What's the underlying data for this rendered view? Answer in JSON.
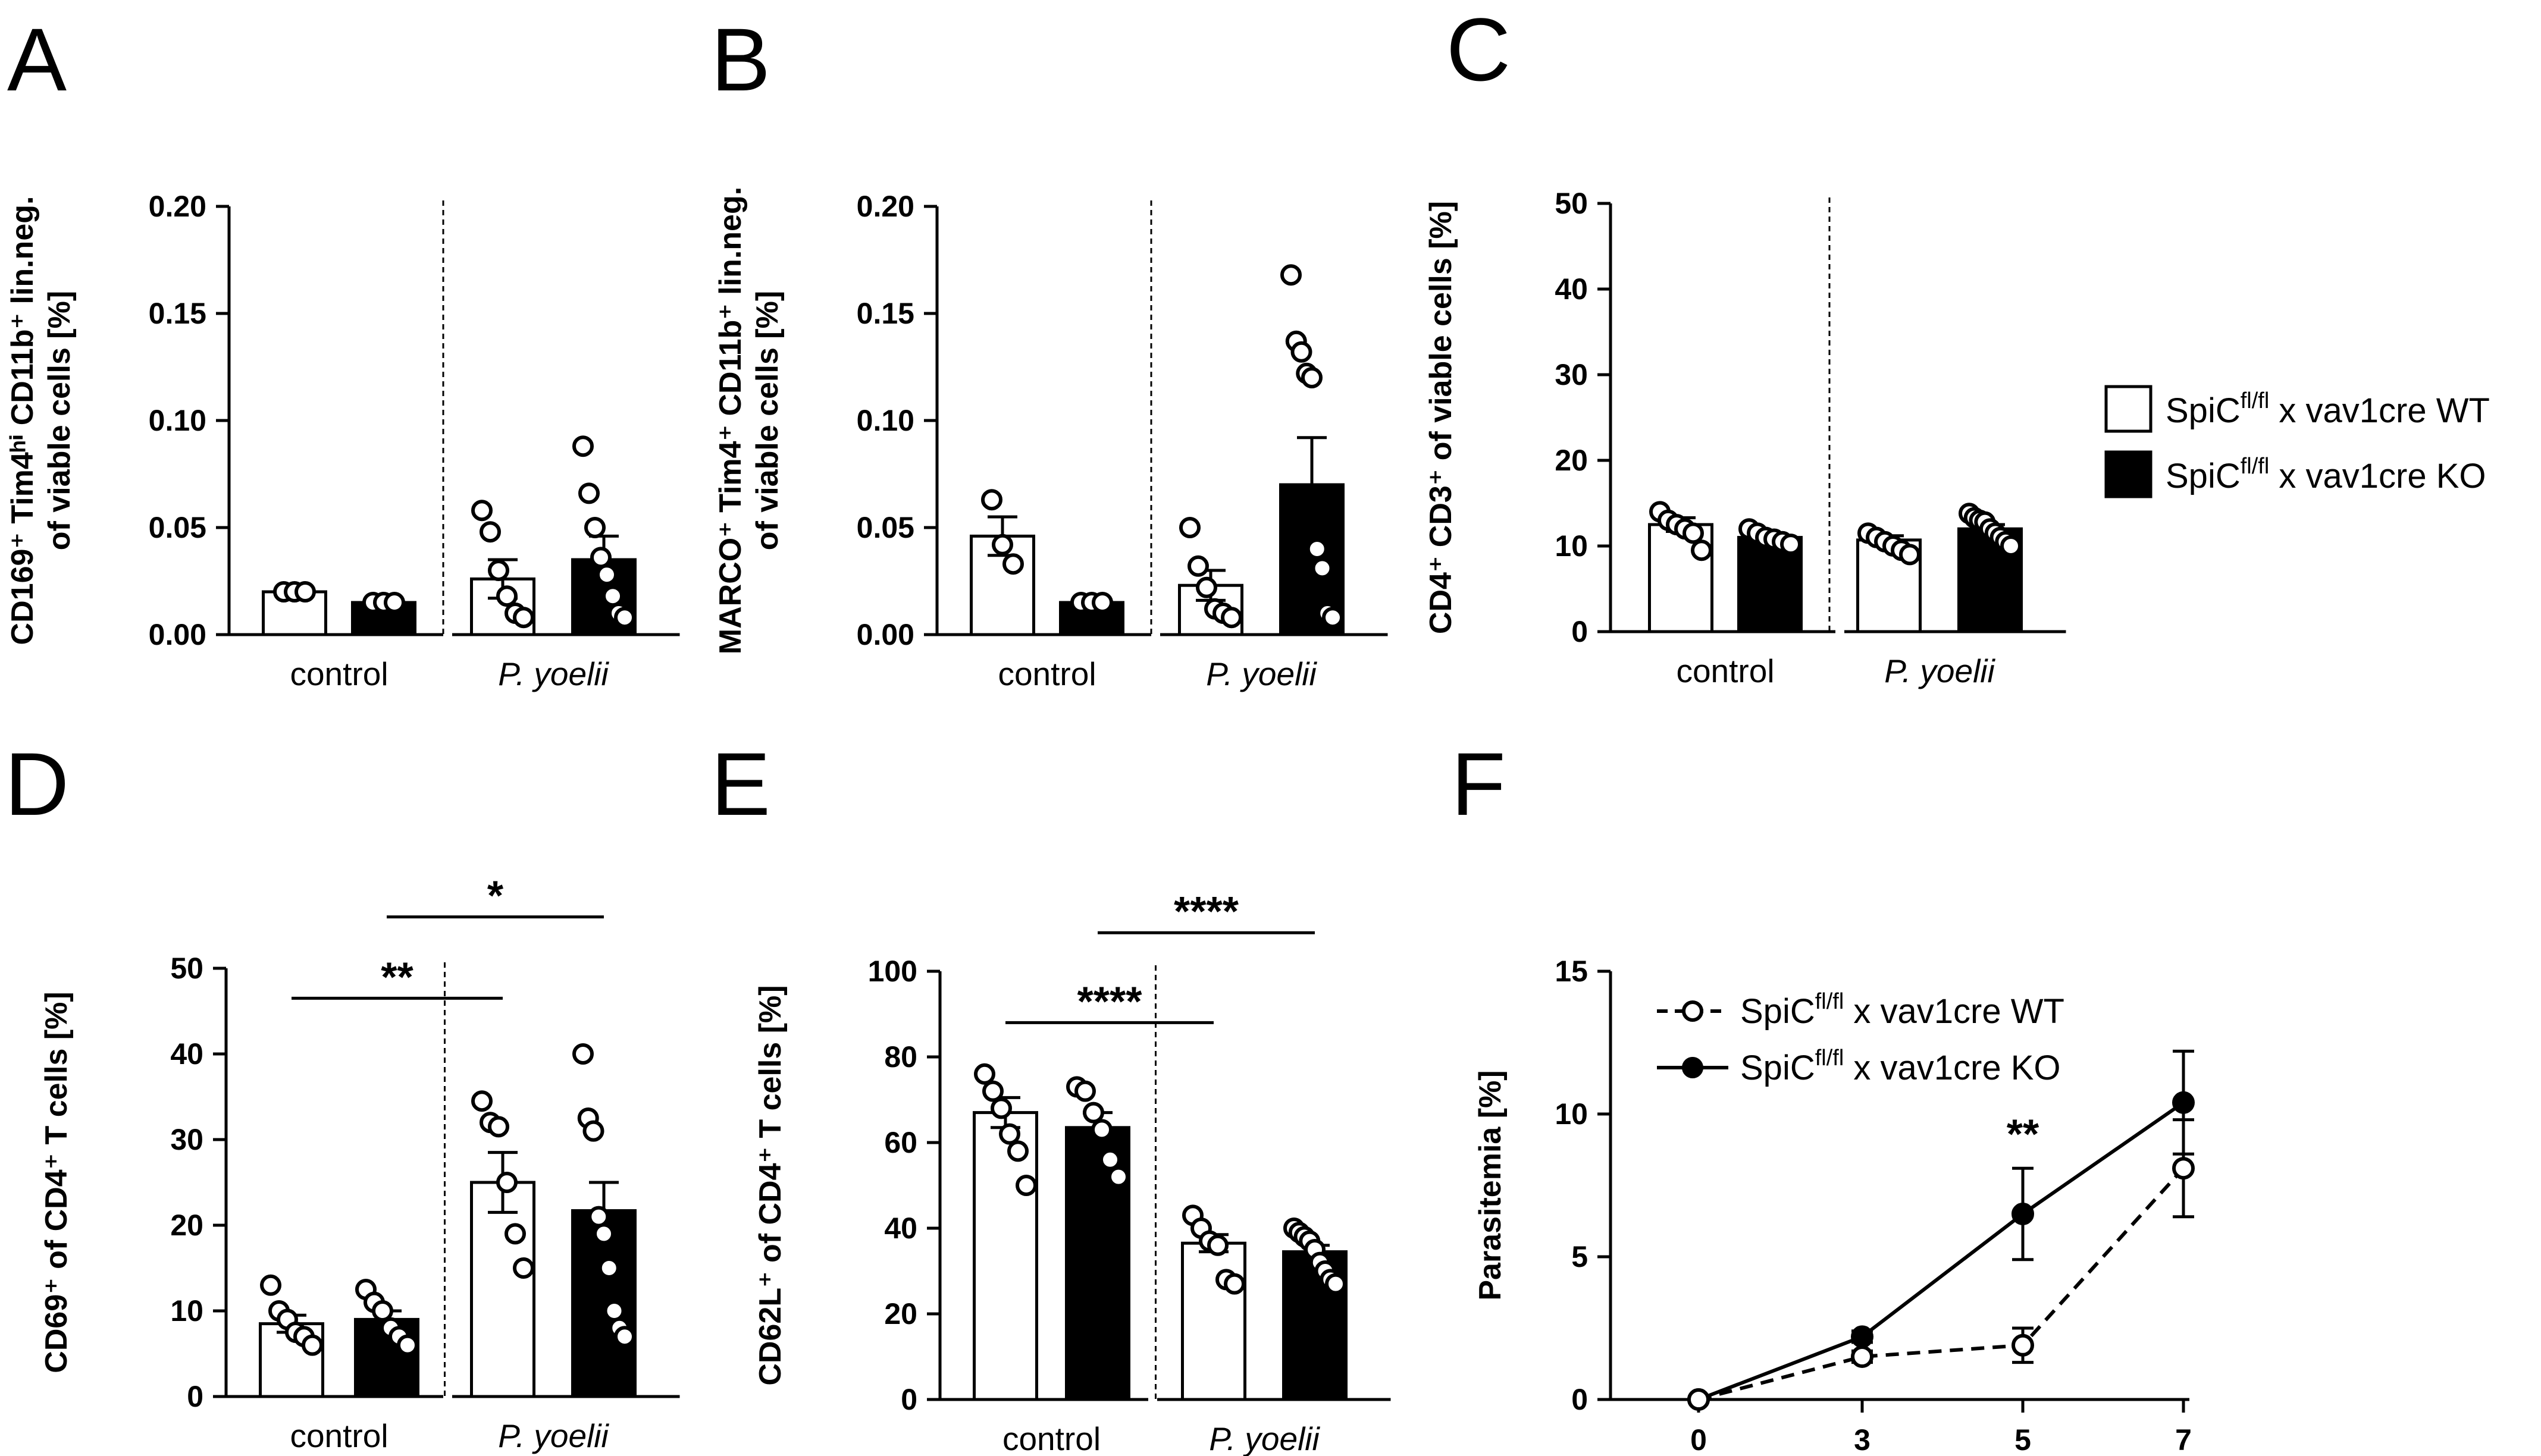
{
  "figure": {
    "panel_letters": [
      "A",
      "B",
      "C",
      "D",
      "E",
      "F"
    ],
    "legend_top": {
      "wt_label": "SpiC<sup>fl/fl</sup> x vav1cre WT",
      "ko_label": "SpiC<sup>fl/fl</sup> x vav1cre KO",
      "wt_prefix": "SpiC",
      "ko_prefix": "SpiC",
      "sup": "fl/fl",
      "wt_suffix": " x vav1cre WT",
      "ko_suffix": " x vav1cre KO"
    },
    "colors": {
      "wt": "#ffffff",
      "ko": "#000000",
      "ink": "#000000"
    }
  },
  "chart_data": [
    {
      "panel": "A",
      "type": "bar",
      "ylabel_line1": "CD169⁺ Tim4ʰⁱ CD11b⁺ lin.neg.",
      "ylabel_line2": "of viable cells [%]",
      "ylim": [
        0,
        0.2
      ],
      "yticks": [
        "0.00",
        "0.05",
        "0.10",
        "0.15",
        "0.20"
      ],
      "ytick_values": [
        0,
        0.05,
        0.1,
        0.15,
        0.2
      ],
      "groups": [
        "control",
        "P. yoelii"
      ],
      "series": [
        {
          "name": "SpiCfl/fl x vav1cre WT",
          "means": [
            0.02,
            0.026
          ],
          "sem": [
            0,
            0.009
          ],
          "points": [
            [
              0.02,
              0.02,
              0.02
            ],
            [
              0.058,
              0.048,
              0.03,
              0.018,
              0.01,
              0.008
            ]
          ]
        },
        {
          "name": "SpiCfl/fl x vav1cre KO",
          "means": [
            0.015,
            0.035
          ],
          "sem": [
            0,
            0.011
          ],
          "points": [
            [
              0.015,
              0.015,
              0.015
            ],
            [
              0.088,
              0.066,
              0.05,
              0.036,
              0.028,
              0.018,
              0.01,
              0.008
            ]
          ]
        }
      ],
      "significance": []
    },
    {
      "panel": "B",
      "type": "bar",
      "ylabel_line1": "MARCO⁺ Tim4⁺ CD11b⁺ lin.neg.",
      "ylabel_line2": "of viable cells [%]",
      "ylim": [
        0,
        0.2
      ],
      "yticks": [
        "0.00",
        "0.05",
        "0.10",
        "0.15",
        "0.20"
      ],
      "ytick_values": [
        0,
        0.05,
        0.1,
        0.15,
        0.2
      ],
      "groups": [
        "control",
        "P. yoelii"
      ],
      "series": [
        {
          "name": "SpiCfl/fl x vav1cre WT",
          "means": [
            0.046,
            0.023
          ],
          "sem": [
            0.009,
            0.007
          ],
          "points": [
            [
              0.063,
              0.042,
              0.033
            ],
            [
              0.05,
              0.032,
              0.022,
              0.012,
              0.01,
              0.008
            ]
          ]
        },
        {
          "name": "SpiCfl/fl x vav1cre KO",
          "means": [
            0.015,
            0.07
          ],
          "sem": [
            0,
            0.022
          ],
          "points": [
            [
              0.015,
              0.015,
              0.015
            ],
            [
              0.168,
              0.137,
              0.132,
              0.122,
              0.12,
              0.04,
              0.031,
              0.01,
              0.008
            ]
          ]
        }
      ],
      "significance": []
    },
    {
      "panel": "C",
      "type": "bar",
      "ylabel_line1": "CD4⁺ CD3⁺ of viable cells [%]",
      "ylabel_line2": "",
      "ylim": [
        0,
        50
      ],
      "yticks": [
        "0",
        "10",
        "20",
        "30",
        "40",
        "50"
      ],
      "ytick_values": [
        0,
        10,
        20,
        30,
        40,
        50
      ],
      "groups": [
        "control",
        "P. yoelii"
      ],
      "series": [
        {
          "name": "SpiCfl/fl x vav1cre WT",
          "means": [
            12.5,
            10.7
          ],
          "sem": [
            0.8,
            0.5
          ],
          "points": [
            [
              14.0,
              13.0,
              12.5,
              12.0,
              11.5,
              9.5
            ],
            [
              11.5,
              11.0,
              10.5,
              10.0,
              9.5,
              9.0
            ]
          ]
        },
        {
          "name": "SpiCfl/fl x vav1cre KO",
          "means": [
            11.0,
            12.0
          ],
          "sem": [
            0.3,
            0.5
          ],
          "points": [
            [
              12.0,
              11.5,
              11.0,
              10.8,
              10.5,
              10.2
            ],
            [
              13.8,
              13.3,
              13.0,
              12.8,
              12.0,
              11.5,
              11.0,
              10.5,
              10.0
            ]
          ]
        }
      ],
      "significance": []
    },
    {
      "panel": "D",
      "type": "bar",
      "ylabel_line1": "CD69⁺ of CD4⁺ T cells [%]",
      "ylabel_line2": "",
      "ylim": [
        0,
        50
      ],
      "yticks": [
        "0",
        "10",
        "20",
        "30",
        "40",
        "50"
      ],
      "ytick_values": [
        0,
        10,
        20,
        30,
        40,
        50
      ],
      "groups": [
        "control",
        "P. yoelii"
      ],
      "series": [
        {
          "name": "SpiCfl/fl x vav1cre WT",
          "means": [
            8.5,
            25.0
          ],
          "sem": [
            1.0,
            3.5
          ],
          "points": [
            [
              13.0,
              10.0,
              9.0,
              7.5,
              7.0,
              6.0
            ],
            [
              34.5,
              32.0,
              31.5,
              25.0,
              19.0,
              15.0
            ]
          ]
        },
        {
          "name": "SpiCfl/fl x vav1cre KO",
          "means": [
            9.0,
            21.7
          ],
          "sem": [
            1.0,
            3.3
          ],
          "points": [
            [
              12.5,
              11.0,
              10.0,
              8.0,
              7.0,
              6.0
            ],
            [
              40.0,
              32.5,
              31.0,
              21.0,
              19.0,
              15.0,
              10.0,
              8.0,
              7.0
            ]
          ]
        }
      ],
      "significance": [
        {
          "label": "**",
          "from": "control-WT",
          "to": "P. yoelii-WT",
          "y": 46.5
        },
        {
          "label": "*",
          "from": "control-KO",
          "to": "P. yoelii-KO",
          "y": 56.0
        }
      ]
    },
    {
      "panel": "E",
      "type": "bar",
      "ylabel_line1": "CD62L⁺ of CD4⁺ T cells [%]",
      "ylabel_line2": "",
      "ylim": [
        0,
        100
      ],
      "yticks": [
        "0",
        "20",
        "40",
        "60",
        "80",
        "100"
      ],
      "ytick_values": [
        0,
        20,
        40,
        60,
        80,
        100
      ],
      "groups": [
        "control",
        "P. yoelii"
      ],
      "series": [
        {
          "name": "SpiCfl/fl x vav1cre WT",
          "means": [
            67.0,
            36.5
          ],
          "sem": [
            3.5,
            2.0
          ],
          "points": [
            [
              76.0,
              72.0,
              68.0,
              62.0,
              58.0,
              50.0
            ],
            [
              43.0,
              40.0,
              37.0,
              36.0,
              28.0,
              27.0
            ]
          ]
        },
        {
          "name": "SpiCfl/fl x vav1cre KO",
          "means": [
            63.5,
            34.5
          ],
          "sem": [
            3.5,
            1.5
          ],
          "points": [
            [
              73.0,
              72.0,
              67.0,
              63.0,
              56.0,
              52.0
            ],
            [
              40.0,
              39.0,
              38.0,
              37.0,
              35.0,
              32.0,
              30.0,
              28.0,
              27.0
            ]
          ]
        }
      ],
      "significance": [
        {
          "label": "****",
          "from": "control-WT",
          "to": "P. yoelii-WT",
          "y": 88.0
        },
        {
          "label": "****",
          "from": "control-KO",
          "to": "P. yoelii-KO",
          "y": 109.0
        }
      ]
    },
    {
      "panel": "F",
      "type": "line",
      "ylabel": "Parasitemia [%]",
      "x": [
        0,
        3,
        5,
        7
      ],
      "xticks": [
        "0",
        "3",
        "5",
        "7"
      ],
      "ylim": [
        0,
        15
      ],
      "yticks": [
        "0",
        "5",
        "10",
        "15"
      ],
      "ytick_values": [
        0,
        5,
        10,
        15
      ],
      "series": [
        {
          "name": "SpiCfl/fl x vav1cre WT",
          "style": "dashed-open",
          "values": [
            0.0,
            1.5,
            1.9,
            8.1
          ],
          "err": [
            0,
            0.2,
            0.6,
            1.7
          ]
        },
        {
          "name": "SpiCfl/fl x vav1cre KO",
          "style": "solid-filled",
          "values": [
            0.0,
            2.2,
            6.5,
            10.4
          ],
          "err": [
            0,
            0.2,
            1.6,
            1.8
          ]
        }
      ],
      "significance": [
        {
          "label": "**",
          "x": 5,
          "y": 8.8
        }
      ]
    }
  ]
}
